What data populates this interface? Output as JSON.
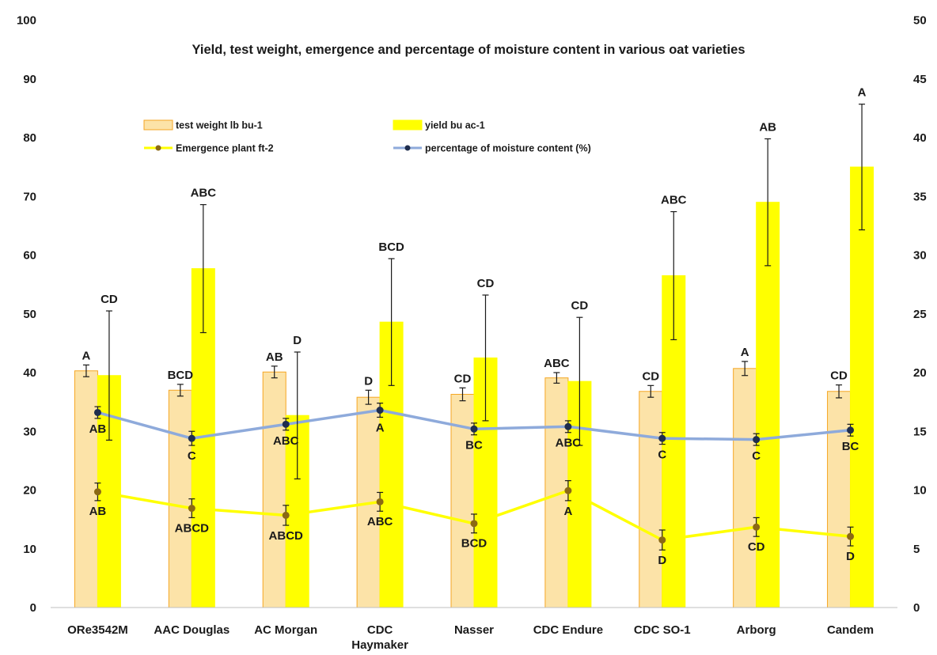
{
  "chart_data": {
    "type": "bar",
    "title": "Yield, test weight, emergence and percentage of moisture content in various oat varieties",
    "categories": [
      "ORe3542M",
      "AAC Douglas",
      "AC Morgan",
      "CDC Haymaker",
      "Nasser",
      "CDC Endure",
      "CDC SO-1",
      "Arborg",
      "Candem"
    ],
    "category_lines": [
      [
        "ORe3542M"
      ],
      [
        "AAC Douglas"
      ],
      [
        "AC Morgan"
      ],
      [
        "CDC",
        "Haymaker"
      ],
      [
        "Nasser"
      ],
      [
        "CDC Endure"
      ],
      [
        "CDC SO-1"
      ],
      [
        "Arborg"
      ],
      [
        "Candem"
      ]
    ],
    "y_left": {
      "min": 0,
      "max": 100,
      "step": 10,
      "ticks": [
        "0",
        "10",
        "20",
        "30",
        "40",
        "50",
        "60",
        "70",
        "80",
        "90",
        "100"
      ]
    },
    "y_right": {
      "min": 0,
      "max": 50,
      "step": 5,
      "ticks": [
        "0",
        "5",
        "10",
        "15",
        "20",
        "25",
        "30",
        "35",
        "40",
        "45",
        "50"
      ]
    },
    "grid": false,
    "legend_position": "top-left, inside plot",
    "series": [
      {
        "name": "test weight lb bu-1",
        "kind": "bar",
        "axis": "left",
        "color": "#fce3a8",
        "border": "#f5a623",
        "values": [
          40.3,
          37.0,
          40.1,
          35.8,
          36.3,
          39.1,
          36.8,
          40.7,
          36.8
        ],
        "errors": [
          1.0,
          1.0,
          1.0,
          1.2,
          1.1,
          0.9,
          1.0,
          1.2,
          1.1
        ],
        "letters": [
          "A",
          "BCD",
          "AB",
          "D",
          "CD",
          "ABC",
          "CD",
          "A",
          "CD"
        ]
      },
      {
        "name": "yield bu ac-1",
        "kind": "bar",
        "axis": "left",
        "color": "#ffff00",
        "border": "#ffff00",
        "values": [
          39.5,
          57.7,
          32.7,
          48.6,
          42.5,
          38.5,
          56.5,
          69.0,
          75.0
        ],
        "errors": [
          11.0,
          10.9,
          10.8,
          10.8,
          10.7,
          10.9,
          10.9,
          10.8,
          10.7
        ],
        "letters": [
          "CD",
          "ABC",
          "D",
          "BCD",
          "CD",
          "CD",
          "ABC",
          "AB",
          "A"
        ]
      },
      {
        "name": "Emergence plant ft-2",
        "kind": "line",
        "axis": "left",
        "color": "#ffff00",
        "marker_color": "#8b6914",
        "values": [
          19.7,
          16.9,
          15.7,
          18.0,
          14.3,
          19.9,
          11.5,
          13.7,
          12.1
        ],
        "errors": [
          1.5,
          1.6,
          1.7,
          1.6,
          1.6,
          1.7,
          1.7,
          1.6,
          1.6
        ],
        "letters": [
          "AB",
          "ABCD",
          "ABCD",
          "ABC",
          "BCD",
          "A",
          "D",
          "CD",
          "D"
        ]
      },
      {
        "name": "percentage of moisture content (%)",
        "kind": "line",
        "axis": "right",
        "color": "#8eaadb",
        "marker_color": "#1f2d4d",
        "values": [
          16.6,
          14.4,
          15.6,
          16.8,
          15.2,
          15.4,
          14.4,
          14.3,
          15.1
        ],
        "errors": [
          0.5,
          0.6,
          0.5,
          0.6,
          0.5,
          0.5,
          0.5,
          0.5,
          0.5
        ],
        "letters": [
          "AB",
          "C",
          "ABC",
          "A",
          "BC",
          "ABC",
          "C",
          "C",
          "BC"
        ]
      }
    ]
  }
}
